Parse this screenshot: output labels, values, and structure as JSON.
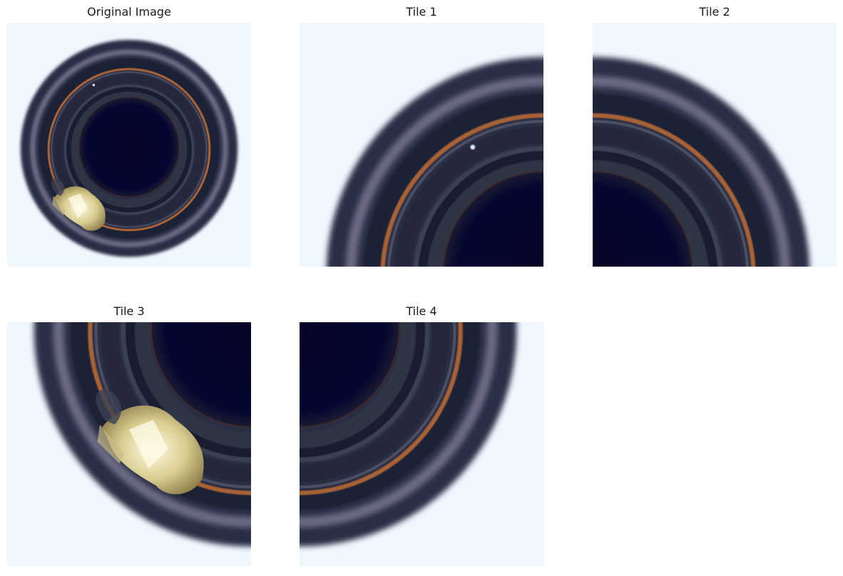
{
  "figure": {
    "panels": [
      {
        "title": "Original Image"
      },
      {
        "title": "Tile 1"
      },
      {
        "title": "Tile 2"
      },
      {
        "title": "Tile 3"
      },
      {
        "title": "Tile 4"
      }
    ],
    "colors": {
      "background": "#f0f8ff",
      "ring_dark": "#1c2033",
      "ring_mid": "#3a3e55",
      "bore": "#05062a",
      "copper": "#b06a3c",
      "defect": "#e8e2b0"
    }
  }
}
